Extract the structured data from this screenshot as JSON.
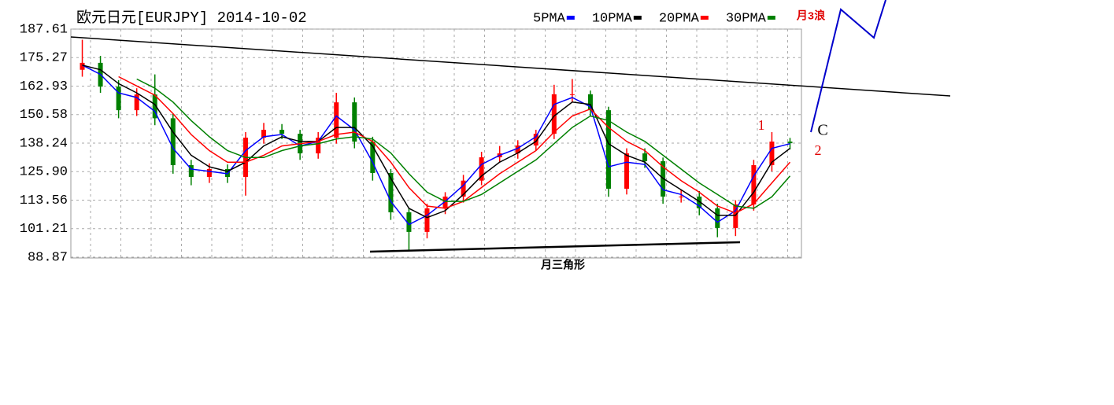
{
  "chart_data": {
    "type": "candlestick",
    "title": "欧元日元[EURJPY] 2014-10-02",
    "ylim": [
      88.87,
      187.61
    ],
    "yticks": [
      187.61,
      175.27,
      162.93,
      150.58,
      138.24,
      {
        "value": 125.9,
        "label": "125.90"
      },
      113.56,
      101.21,
      88.87
    ],
    "grid": true,
    "up_color": "#ff0000",
    "down_color": "#008000",
    "open": [
      170,
      173,
      162.7,
      152.5,
      159.3,
      149,
      128.7,
      123.6,
      127,
      123.6,
      140.6,
      144,
      142.3,
      133.8,
      140.6,
      155.9,
      138.9,
      125.3,
      108.3,
      99.8,
      110,
      115.1,
      122,
      132.1,
      133.8,
      137.2,
      142.3,
      159.4,
      159.4,
      152.5,
      118.5,
      133.8,
      130.4,
      115.1,
      115.1,
      110,
      101.5,
      111.7,
      128.7,
      138.9
    ],
    "high": [
      183,
      176,
      165.5,
      162,
      168,
      151,
      131,
      129.5,
      129,
      143,
      147,
      146.5,
      144,
      143,
      160,
      158,
      141,
      127,
      110,
      112,
      117,
      124.5,
      134.5,
      137,
      139.5,
      144,
      163.5,
      166,
      161,
      154,
      136,
      136,
      132,
      118,
      117.5,
      112,
      113.5,
      131,
      143,
      140.5
    ],
    "low": [
      167,
      160,
      149,
      150,
      146,
      125,
      120,
      121,
      121,
      115.5,
      138,
      140,
      131,
      131.5,
      138,
      136,
      122,
      105,
      92,
      97,
      107.5,
      112.5,
      120,
      130,
      131.5,
      135,
      140,
      156,
      150,
      115,
      116,
      127.5,
      112,
      112.5,
      107,
      97.5,
      98,
      109,
      126,
      135.5
    ],
    "close": [
      173,
      162.7,
      152.5,
      159.3,
      149,
      128.7,
      123.6,
      127,
      123.6,
      140.6,
      144,
      142.3,
      133.8,
      140.6,
      155.9,
      138.9,
      125.3,
      108.3,
      99.8,
      110,
      115.1,
      122,
      132.1,
      133.8,
      137.2,
      142.3,
      159.4,
      159.4,
      152.5,
      118.5,
      133.8,
      130.4,
      115.1,
      115.1,
      110,
      101.5,
      111.7,
      128.7,
      138.9,
      138.2
    ],
    "series": [
      {
        "name": "5PMA",
        "color": "#0000ff",
        "values": [
          172,
          168,
          160,
          158,
          152,
          136,
          127,
          126,
          125,
          135,
          141,
          142,
          137,
          139,
          150,
          144,
          130,
          113,
          103,
          107,
          113,
          120,
          129,
          133,
          136,
          141,
          155,
          158,
          154,
          128,
          130,
          129,
          118,
          116,
          111,
          104,
          109,
          124,
          136,
          138
        ]
      },
      {
        "name": "10PMA",
        "color": "#000000",
        "values": [
          172,
          170,
          164,
          160,
          155,
          143,
          133,
          128,
          126,
          130,
          137,
          141,
          139,
          139,
          145,
          145,
          137,
          123,
          110,
          106,
          109,
          116,
          124,
          130,
          134,
          139,
          150,
          156,
          155,
          138,
          133,
          130,
          123,
          118,
          113,
          107,
          107,
          117,
          130,
          136
        ]
      },
      {
        "name": "20PMA",
        "color": "#ff0000",
        "values": [
          null,
          null,
          167,
          163,
          159,
          151,
          142,
          135,
          130,
          130,
          133,
          137,
          138,
          139,
          142,
          143,
          139,
          130,
          119,
          111,
          110,
          113,
          119,
          125,
          130,
          135,
          143,
          150,
          153,
          145,
          139,
          135,
          128,
          122,
          117,
          111,
          108,
          112,
          121,
          130
        ]
      },
      {
        "name": "30PMA",
        "color": "#008000",
        "values": [
          null,
          null,
          null,
          166,
          162,
          156,
          148,
          141,
          135,
          132,
          132,
          135,
          137,
          138,
          140,
          141,
          140,
          134,
          125,
          117,
          113,
          113,
          116,
          121,
          126,
          131,
          138,
          145,
          150,
          148,
          143,
          139,
          133,
          127,
          121,
          116,
          111,
          110,
          115,
          124
        ]
      }
    ],
    "annotations": [
      "月三角形",
      "1",
      "C",
      "2",
      "月3浪"
    ]
  }
}
